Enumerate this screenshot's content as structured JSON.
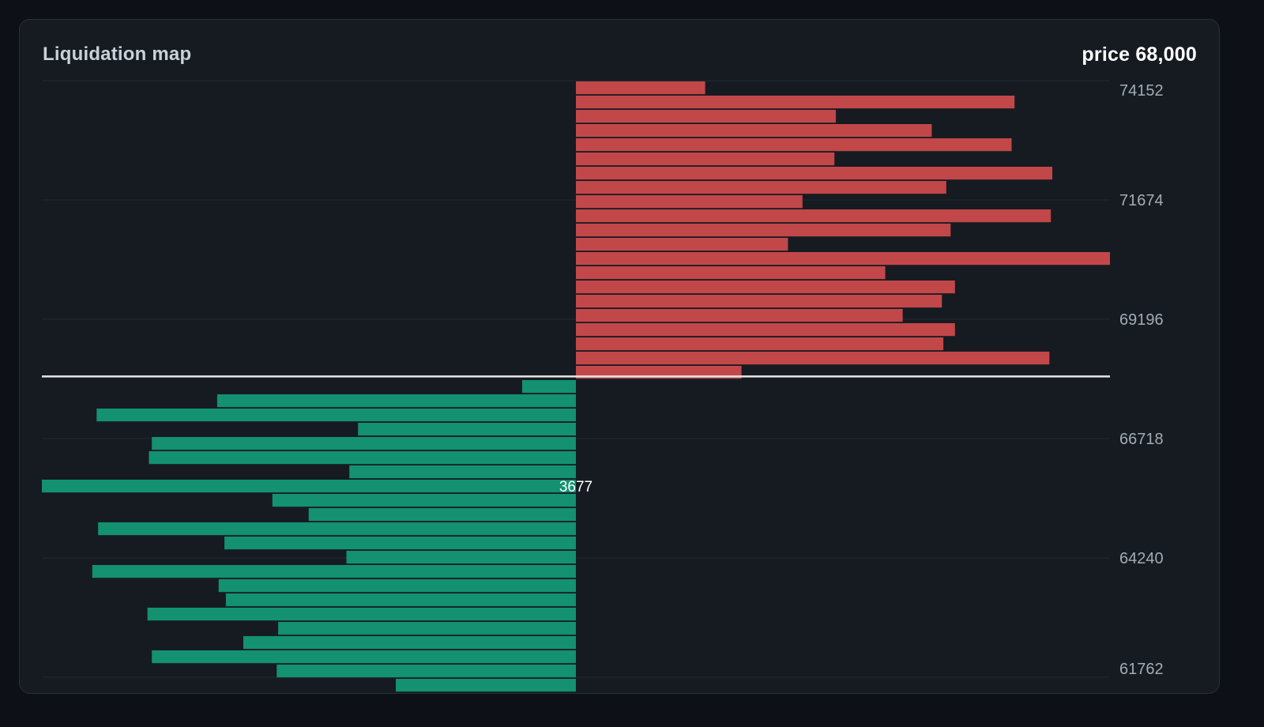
{
  "colors": {
    "page_bg": "#0d1117",
    "panel_bg": "#161b22",
    "short_liquidations": "#c24749",
    "long_liquidations": "#139170",
    "gridline": "#232a33",
    "price_line": "#e6e6e6"
  },
  "header": {
    "title": "Liquidation map",
    "price_label": "price 68,000"
  },
  "chart_data": {
    "type": "bar",
    "orientation": "horizontal-diverging",
    "title": "Liquidation map",
    "current_price": 68000,
    "y_ticks": [
      "74152",
      "71674",
      "69196",
      "66718",
      "64240",
      "61762"
    ],
    "y_range": [
      61762,
      74152
    ],
    "x_max": 3677,
    "grid": true,
    "annotation": {
      "text": "3677",
      "value": 3677
    },
    "short_series": {
      "color": "#c24749",
      "values": [
        890,
        3020,
        1790,
        2450,
        3000,
        1780,
        3280,
        2550,
        1560,
        3270,
        2580,
        1460,
        3677,
        2130,
        2610,
        2520,
        2250,
        2610,
        2530,
        3260,
        1140,
        0
      ]
    },
    "long_series": {
      "color": "#139170",
      "values": [
        0,
        370,
        2470,
        3300,
        1500,
        2920,
        2940,
        1560,
        3677,
        2090,
        1840,
        3290,
        2420,
        1580,
        3330,
        2460,
        2410,
        2950,
        2050,
        2290,
        2920,
        2060,
        1240
      ]
    }
  }
}
